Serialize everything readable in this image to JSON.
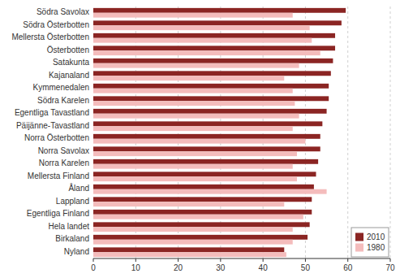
{
  "chart_data": {
    "type": "bar",
    "orientation": "horizontal",
    "categories": [
      "Södra Savolax",
      "Södra Österbotten",
      "Mellersta Österbotten",
      "Österbotten",
      "Satakunta",
      "Kajanaland",
      "Kymmenedalen",
      "Södra Karelen",
      "Egentliga Tavastland",
      "Päijänne-Tavastland",
      "Norra Österbotten",
      "Norra Savolax",
      "Norra Karelen",
      "Mellersta Finland",
      "Åland",
      "Lappland",
      "Egentliga Finland",
      "Hela landet",
      "Birkaland",
      "Nyland"
    ],
    "series": [
      {
        "name": "2010",
        "color": "#8B2523",
        "values": [
          59.5,
          58.5,
          57.0,
          57.0,
          56.5,
          56.0,
          55.5,
          55.5,
          55.0,
          54.0,
          53.5,
          53.5,
          53.0,
          52.5,
          52.0,
          51.5,
          51.5,
          51.0,
          50.5,
          45.0
        ]
      },
      {
        "name": "1980",
        "color": "#F4BCBC",
        "values": [
          47.0,
          51.0,
          51.5,
          53.5,
          48.5,
          45.0,
          47.0,
          47.5,
          48.5,
          47.0,
          50.0,
          48.0,
          47.0,
          48.0,
          55.0,
          45.0,
          49.5,
          47.0,
          47.0,
          45.5
        ]
      }
    ],
    "xlim": [
      0,
      70
    ],
    "xticks": [
      0,
      10,
      20,
      30,
      40,
      50,
      60,
      70
    ],
    "grid": true,
    "legend": "lower right"
  }
}
